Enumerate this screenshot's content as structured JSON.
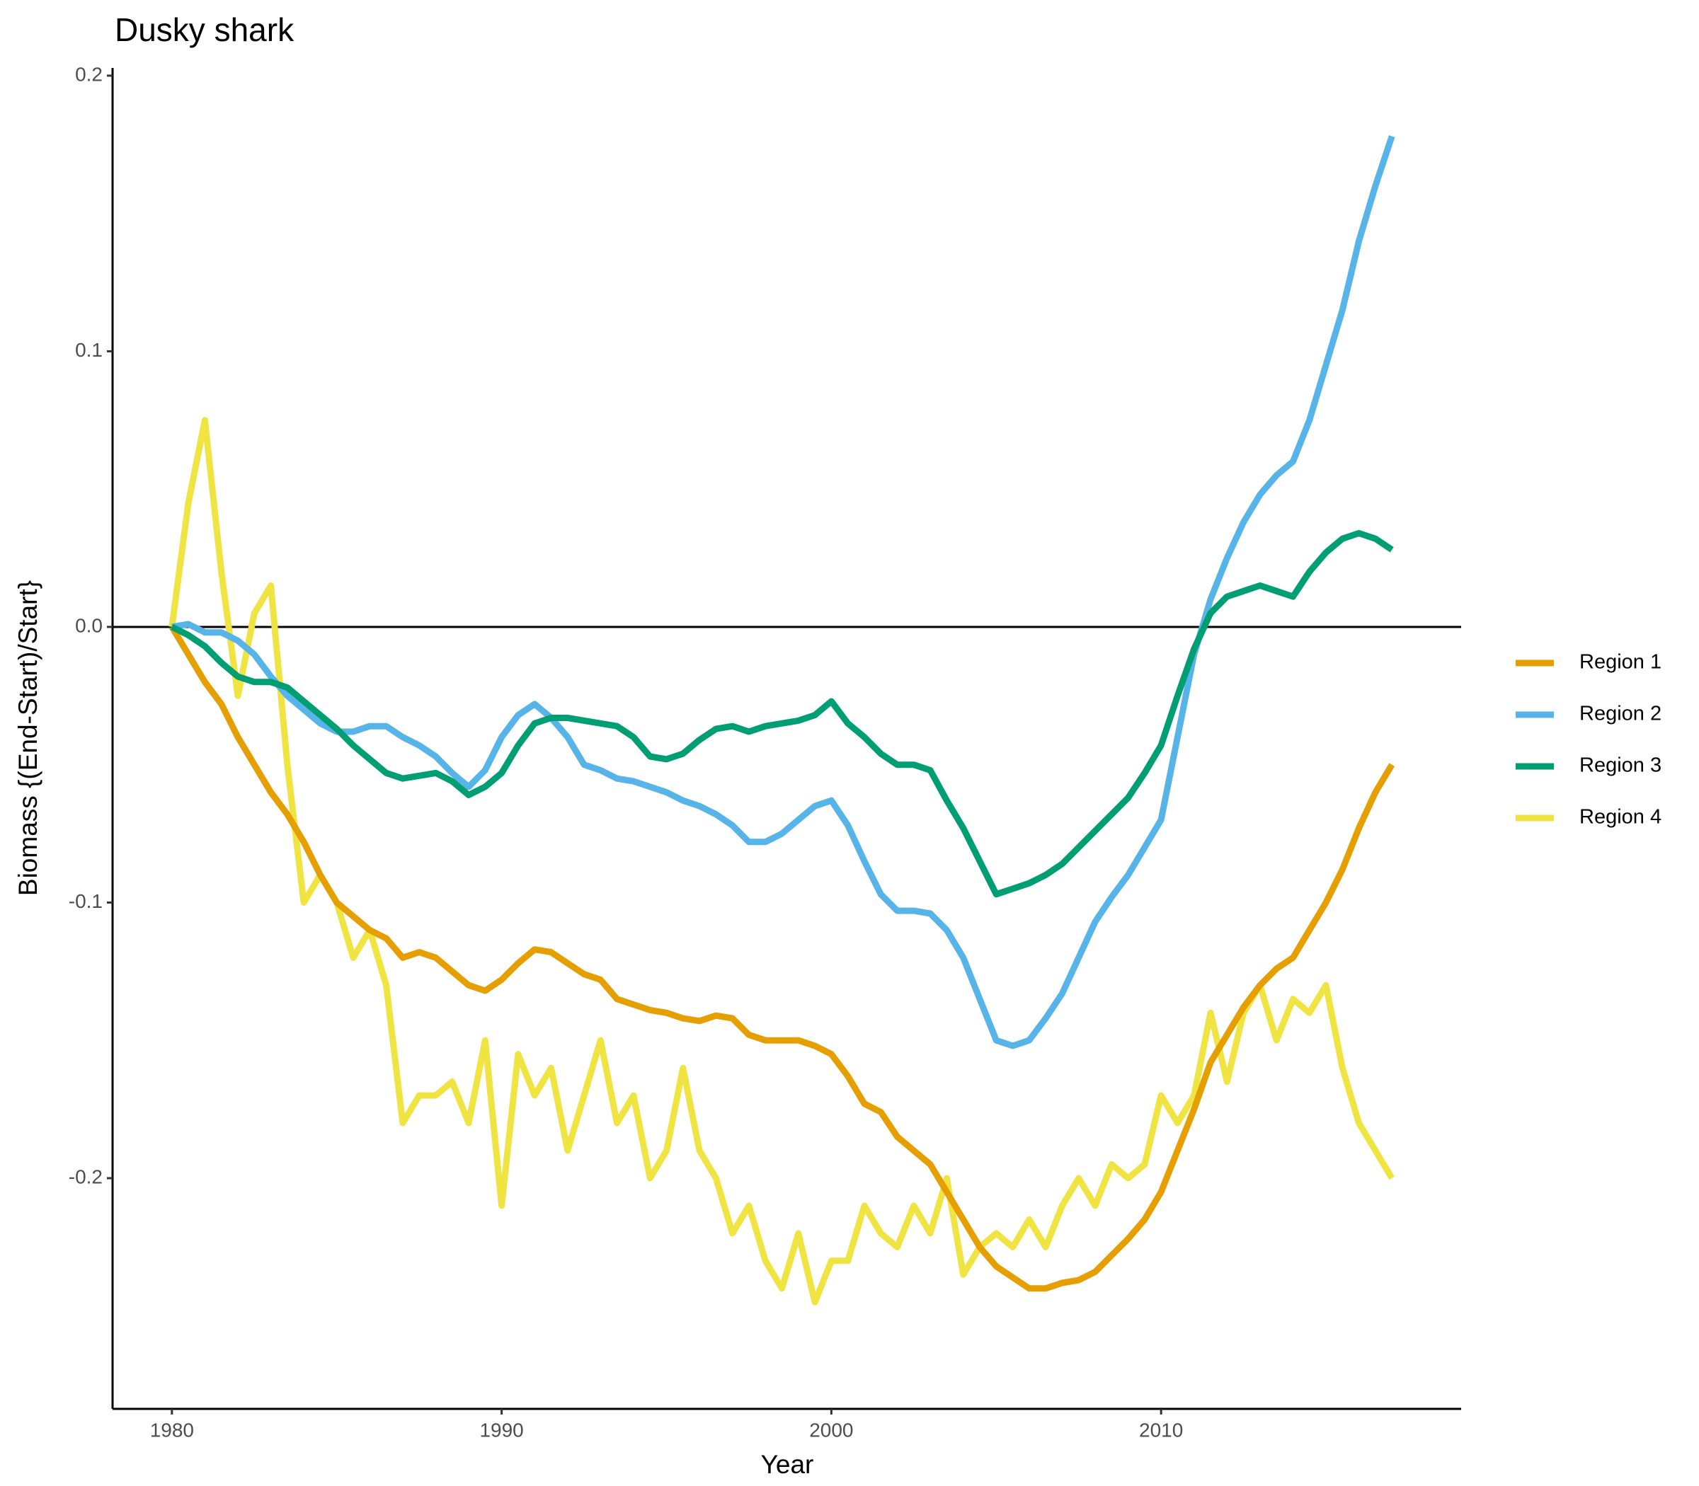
{
  "chart_data": {
    "type": "line",
    "title": "Dusky shark",
    "x_label": "Year",
    "y_label": "Biomass {(End-Start)/Start}",
    "x": [
      1980,
      1980.5,
      1981,
      1981.5,
      1982,
      1982.5,
      1983,
      1983.5,
      1984,
      1984.5,
      1985,
      1985.5,
      1986,
      1986.5,
      1987,
      1987.5,
      1988,
      1988.5,
      1989,
      1989.5,
      1990,
      1990.5,
      1991,
      1991.5,
      1992,
      1992.5,
      1993,
      1993.5,
      1994,
      1994.5,
      1995,
      1995.5,
      1996,
      1996.5,
      1997,
      1997.5,
      1998,
      1998.5,
      1999,
      1999.5,
      2000,
      2000.5,
      2001,
      2001.5,
      2002,
      2002.5,
      2003,
      2003.5,
      2004,
      2004.5,
      2005,
      2005.5,
      2006,
      2006.5,
      2007,
      2007.5,
      2008,
      2008.5,
      2009,
      2009.5,
      2010,
      2010.5,
      2011,
      2011.5,
      2012,
      2012.5,
      2013,
      2013.5,
      2014,
      2014.5,
      2015,
      2015.5,
      2016,
      2016.5,
      2017
    ],
    "series": [
      {
        "name": "Region 1",
        "color": "#E69F00",
        "values": [
          0,
          -0.01,
          -0.02,
          -0.028,
          -0.04,
          -0.05,
          -0.06,
          -0.068,
          -0.078,
          -0.09,
          -0.1,
          -0.105,
          -0.11,
          -0.113,
          -0.12,
          -0.118,
          -0.12,
          -0.125,
          -0.13,
          -0.132,
          -0.128,
          -0.122,
          -0.117,
          -0.118,
          -0.122,
          -0.126,
          -0.128,
          -0.135,
          -0.137,
          -0.139,
          -0.14,
          -0.142,
          -0.143,
          -0.141,
          -0.142,
          -0.148,
          -0.15,
          -0.15,
          -0.15,
          -0.152,
          -0.155,
          -0.163,
          -0.173,
          -0.176,
          -0.185,
          -0.19,
          -0.195,
          -0.205,
          -0.215,
          -0.225,
          -0.232,
          -0.236,
          -0.24,
          -0.24,
          -0.238,
          -0.237,
          -0.234,
          -0.228,
          -0.222,
          -0.215,
          -0.205,
          -0.19,
          -0.175,
          -0.158,
          -0.148,
          -0.138,
          -0.13,
          -0.124,
          -0.12,
          -0.11,
          -0.1,
          -0.088,
          -0.073,
          -0.06,
          -0.05
        ]
      },
      {
        "name": "Region 2",
        "color": "#56B4E9",
        "values": [
          0,
          0.001,
          -0.002,
          -0.002,
          -0.005,
          -0.01,
          -0.018,
          -0.025,
          -0.03,
          -0.035,
          -0.038,
          -0.038,
          -0.036,
          -0.036,
          -0.04,
          -0.043,
          -0.047,
          -0.053,
          -0.058,
          -0.052,
          -0.04,
          -0.032,
          -0.028,
          -0.033,
          -0.04,
          -0.05,
          -0.052,
          -0.055,
          -0.056,
          -0.058,
          -0.06,
          -0.063,
          -0.065,
          -0.068,
          -0.072,
          -0.078,
          -0.078,
          -0.075,
          -0.07,
          -0.065,
          -0.063,
          -0.072,
          -0.085,
          -0.097,
          -0.103,
          -0.103,
          -0.104,
          -0.11,
          -0.12,
          -0.135,
          -0.15,
          -0.152,
          -0.15,
          -0.142,
          -0.133,
          -0.12,
          -0.107,
          -0.098,
          -0.09,
          -0.08,
          -0.07,
          -0.04,
          -0.01,
          0.01,
          0.025,
          0.038,
          0.048,
          0.055,
          0.06,
          0.075,
          0.095,
          0.115,
          0.14,
          0.16,
          0.178
        ]
      },
      {
        "name": "Region 3",
        "color": "#009E73",
        "values": [
          0,
          -0.003,
          -0.007,
          -0.013,
          -0.018,
          -0.02,
          -0.02,
          -0.022,
          -0.027,
          -0.032,
          -0.037,
          -0.043,
          -0.048,
          -0.053,
          -0.055,
          -0.054,
          -0.053,
          -0.056,
          -0.061,
          -0.058,
          -0.053,
          -0.043,
          -0.035,
          -0.033,
          -0.033,
          -0.034,
          -0.035,
          -0.036,
          -0.04,
          -0.047,
          -0.048,
          -0.046,
          -0.041,
          -0.037,
          -0.036,
          -0.038,
          -0.036,
          -0.035,
          -0.034,
          -0.032,
          -0.027,
          -0.035,
          -0.04,
          -0.046,
          -0.05,
          -0.05,
          -0.052,
          -0.063,
          -0.073,
          -0.085,
          -0.097,
          -0.095,
          -0.093,
          -0.09,
          -0.086,
          -0.08,
          -0.074,
          -0.068,
          -0.062,
          -0.053,
          -0.043,
          -0.025,
          -0.008,
          0.005,
          0.011,
          0.013,
          0.015,
          0.013,
          0.011,
          0.02,
          0.027,
          0.032,
          0.034,
          0.032,
          0.028
        ]
      },
      {
        "name": "Region 4",
        "color": "#F0E442",
        "values": [
          0,
          0.045,
          0.075,
          0.02,
          -0.025,
          0.005,
          0.015,
          -0.05,
          -0.1,
          -0.09,
          -0.1,
          -0.12,
          -0.11,
          -0.13,
          -0.18,
          -0.17,
          -0.17,
          -0.165,
          -0.18,
          -0.15,
          -0.21,
          -0.155,
          -0.17,
          -0.16,
          -0.19,
          -0.17,
          -0.15,
          -0.18,
          -0.17,
          -0.2,
          -0.19,
          -0.16,
          -0.19,
          -0.2,
          -0.22,
          -0.21,
          -0.23,
          -0.24,
          -0.22,
          -0.245,
          -0.23,
          -0.23,
          -0.21,
          -0.22,
          -0.225,
          -0.21,
          -0.22,
          -0.2,
          -0.235,
          -0.225,
          -0.22,
          -0.225,
          -0.215,
          -0.225,
          -0.21,
          -0.2,
          -0.21,
          -0.195,
          -0.2,
          -0.195,
          -0.17,
          -0.18,
          -0.17,
          -0.14,
          -0.165,
          -0.14,
          -0.13,
          -0.15,
          -0.135,
          -0.14,
          -0.13,
          -0.16,
          -0.18,
          -0.19,
          -0.2
        ]
      }
    ],
    "xlim": [
      1978.2,
      2019.1
    ],
    "xticks": [
      1980,
      1990,
      2000,
      2010
    ],
    "ylim": [
      -0.2837,
      0.2028
    ],
    "yticks": [
      {
        "value": -0.2,
        "label": "-0.2"
      },
      {
        "value": -0.1,
        "label": "-0.1"
      },
      {
        "value": 0,
        "label": "0.0"
      },
      {
        "value": 0.1,
        "label": "0.1"
      },
      {
        "value": 0.2,
        "label": "0.2"
      }
    ],
    "hline": 0,
    "legend": "right"
  }
}
